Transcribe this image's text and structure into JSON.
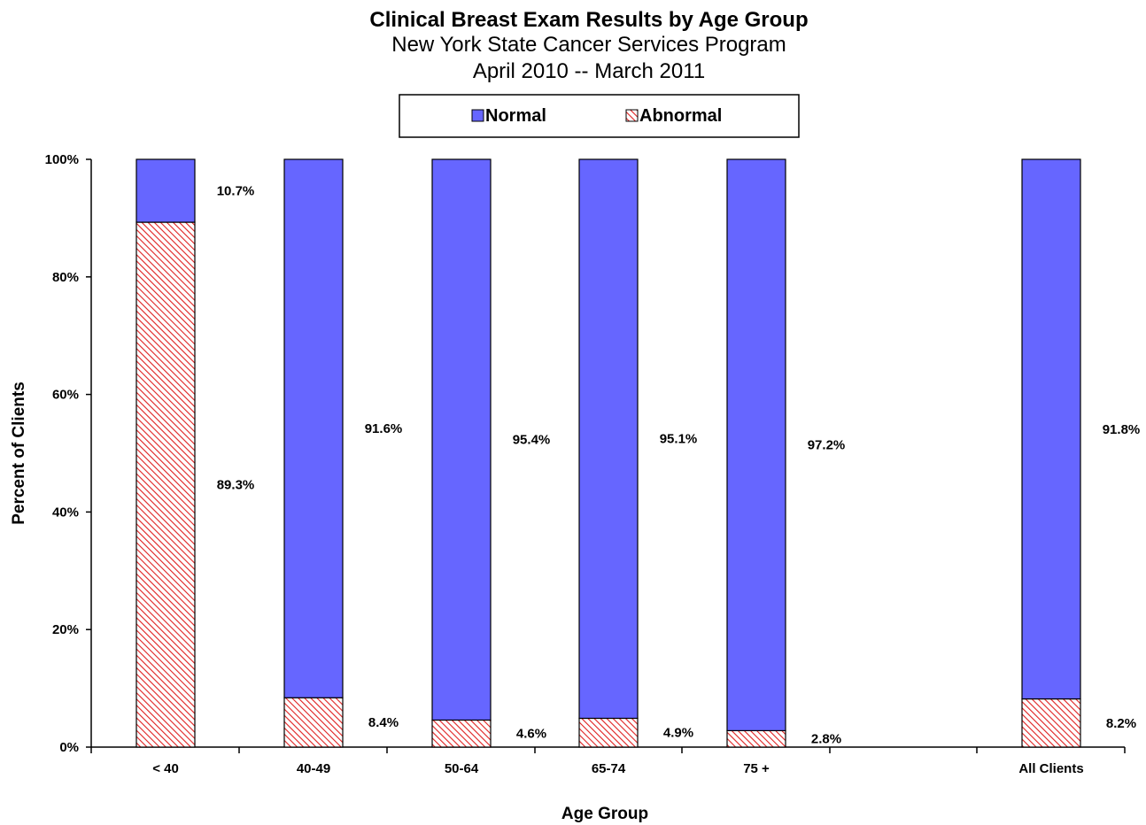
{
  "chart_data": {
    "type": "bar",
    "stacked": true,
    "percent_stacked": true,
    "title": "Clinical Breast Exam Results by Age Group",
    "subtitle_lines": [
      "New York State Cancer Services Program",
      "April 2010 -- March 2011"
    ],
    "xlabel": "Age Group",
    "ylabel": "Percent of Clients",
    "ylim": [
      0,
      100
    ],
    "yticks": [
      0,
      20,
      40,
      60,
      80,
      100
    ],
    "ytick_labels": [
      "0%",
      "20%",
      "40%",
      "60%",
      "80%",
      "100%"
    ],
    "categories": [
      "< 40",
      "40-49",
      "50-64",
      "65-74",
      "75 +",
      "All Clients"
    ],
    "series": [
      {
        "name": "Normal",
        "color": "#6666ff",
        "values": [
          10.7,
          91.6,
          95.4,
          95.1,
          97.2,
          91.8
        ],
        "labels": [
          "10.7%",
          "91.6%",
          "95.4%",
          "95.1%",
          "97.2%",
          "91.8%"
        ]
      },
      {
        "name": "Abnormal",
        "color": "#e02020",
        "pattern": "diagonal-hatch",
        "values": [
          89.3,
          8.4,
          4.6,
          4.9,
          2.8,
          8.2
        ],
        "labels": [
          "89.3%",
          "8.4%",
          "4.6%",
          "4.9%",
          "2.8%",
          "8.2%"
        ]
      }
    ],
    "legend": {
      "placement": "top-center",
      "boxed": true
    },
    "grid": false
  }
}
